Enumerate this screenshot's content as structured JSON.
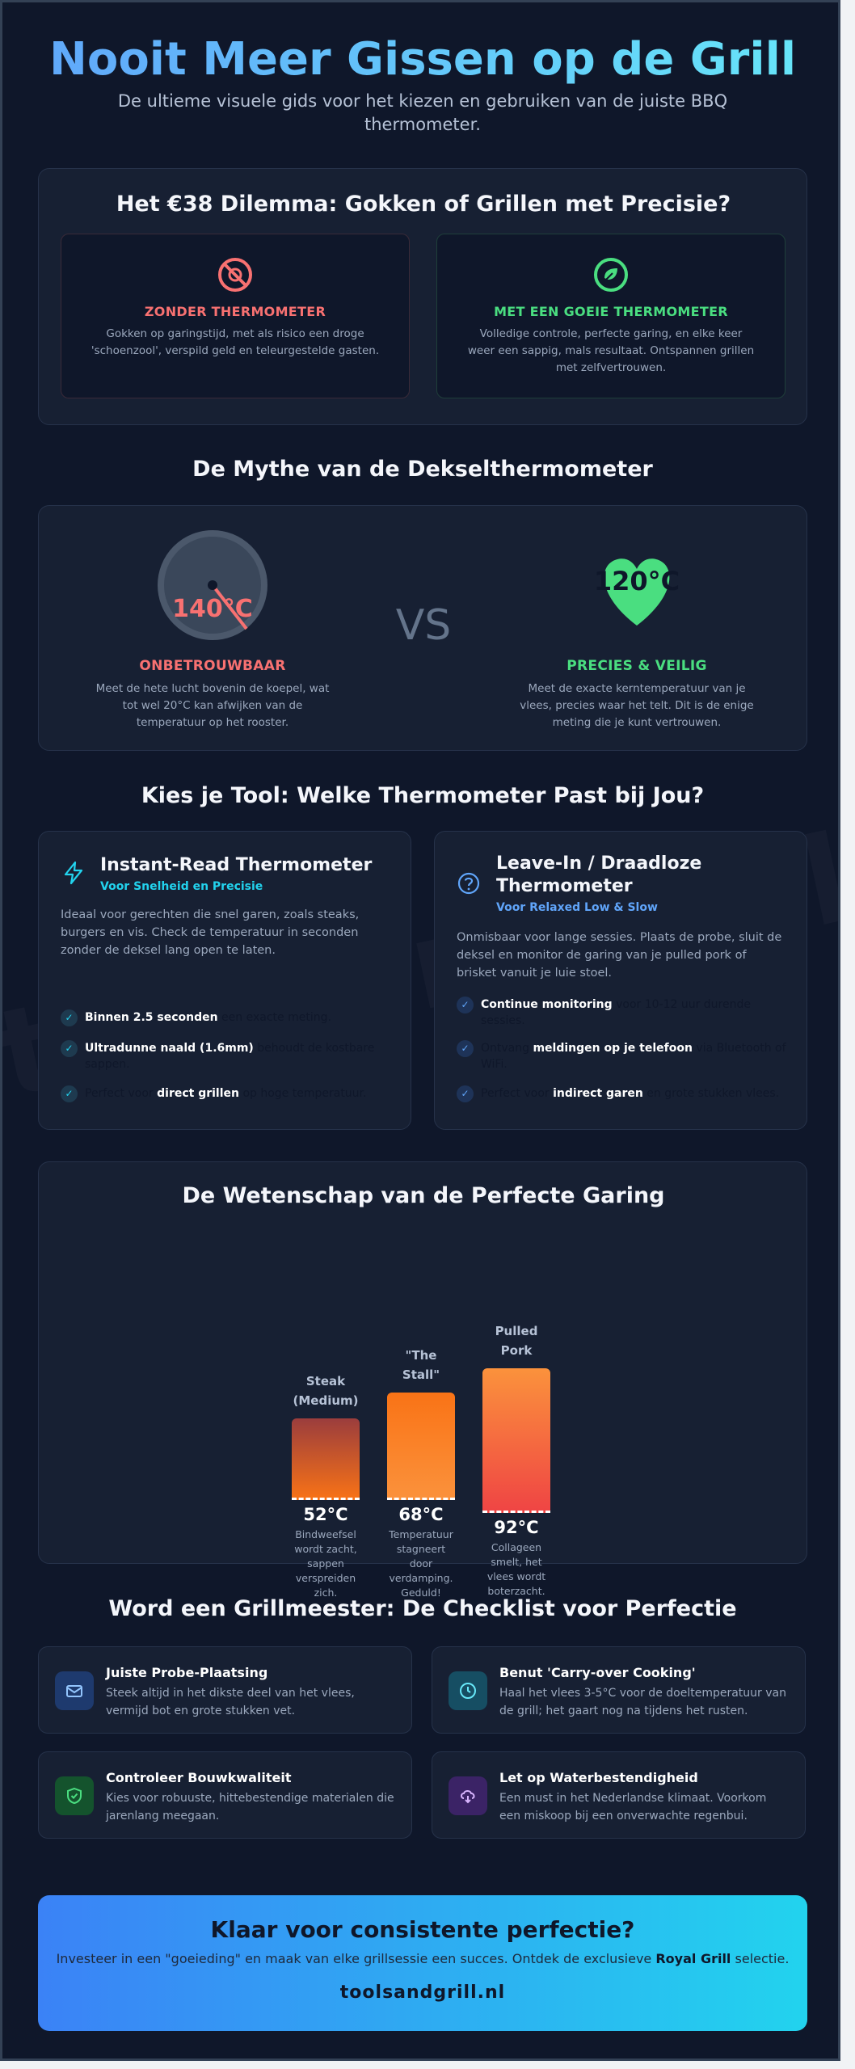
{
  "hero": {
    "title": "Nooit Meer Gissen op de Grill",
    "subtitle": "De ultieme visuele gids voor het kiezen en gebruiken van de juiste BBQ thermometer."
  },
  "watermark": "toolsandgrill.nl",
  "dilemma": {
    "title": "Het €38 Dilemma: Gokken of Grillen met Precisie?",
    "without": {
      "label": "ZONDER THERMOMETER",
      "text": "Gokken op garingstijd, met als risico een droge 'schoenzool', verspild geld en teleurgestelde gasten.",
      "icon": "ban-icon",
      "color": "#f87171"
    },
    "with": {
      "label": "MET EEN GOEIE THERMOMETER",
      "text": "Volledige controle, perfecte garing, en elke keer weer een sappig, mals resultaat. Ontspannen grillen met zelfvertrouwen.",
      "icon": "leaf-icon",
      "color": "#4ade80"
    }
  },
  "myth": {
    "title": "De Mythe van de Dekselthermometer",
    "left": {
      "reading": "140°C",
      "label": "ONBETROUWBAAR",
      "text": "Meet de hete lucht bovenin de koepel, wat tot wel 20°C kan afwijken van de temperatuur op het rooster."
    },
    "vs": "VS",
    "right": {
      "reading": "120°C",
      "label": "PRECIES & VEILIG",
      "text": "Meet de exacte kerntemperatuur van je vlees, precies waar het telt. Dit is de enige meting die je kunt vertrouwen."
    }
  },
  "tools": {
    "title": "Kies je Tool: Welke Thermometer Past bij Jou?",
    "instant": {
      "name": "Instant-Read Thermometer",
      "tag": "Voor Snelheid en Precisie",
      "desc": "Ideaal voor gerechten die snel garen, zoals steaks, burgers en vis. Check de temperatuur in seconden zonder de deksel lang open te laten.",
      "features": [
        {
          "strong": "Binnen 2.5 seconden",
          "rest": " een exacte meting."
        },
        {
          "strong": "Ultradunne naald (1.6mm)",
          "rest": " behoudt de kostbare sappen."
        },
        {
          "pre": "Perfect voor ",
          "strong": "direct grillen",
          "rest": " op hoge temperatuur."
        }
      ]
    },
    "leavein": {
      "name": "Leave-In / Draadloze Thermometer",
      "tag": "Voor Relaxed Low & Slow",
      "desc": "Onmisbaar voor lange sessies. Plaats de probe, sluit de deksel en monitor de garing van je pulled pork of brisket vanuit je luie stoel.",
      "features": [
        {
          "strong": "Continue monitoring",
          "rest": " voor 10-12 uur durende sessies."
        },
        {
          "pre": "Ontvang ",
          "strong": "meldingen op je telefoon",
          "rest": " via Bluetooth of WiFi."
        },
        {
          "pre": "Perfect voor ",
          "strong": "indirect garen",
          "rest": " en grote stukken vlees."
        }
      ]
    }
  },
  "science": {
    "title": "De Wetenschap van de Perfecte Garing",
    "bars": [
      {
        "label": "Steak (Medium)",
        "temp": "52°C",
        "value": 52,
        "note": "Bindweefsel wordt zacht, sappen verspreiden zich.",
        "color_top": "#9b3d3d",
        "color_bottom": "#f97316"
      },
      {
        "label": "\"The Stall\"",
        "temp": "68°C",
        "value": 68,
        "note": "Temperatuur stagneert door verdamping. Geduld!",
        "color_top": "#f97316",
        "color_bottom": "#fb923c"
      },
      {
        "label": "Pulled Pork",
        "temp": "92°C",
        "value": 92,
        "note": "Collageen smelt, het vlees wordt boterzacht.",
        "color_top": "#fb923c",
        "color_bottom": "#ef4444"
      }
    ]
  },
  "checklist": {
    "title": "Word een Grillmeester: De Checklist voor Perfectie",
    "items": [
      {
        "title": "Juiste Probe-Plaatsing",
        "text": "Steek altijd in het dikste deel van het vlees, vermijd bot en grote stukken vet.",
        "icon": "envelope-icon",
        "bg": "#1e3a6e",
        "fg": "#93c5fd"
      },
      {
        "title": "Benut 'Carry-over Cooking'",
        "text": "Haal het vlees 3-5°C voor de doeltemperatuur van de grill; het gaart nog na tijdens het rusten.",
        "icon": "clock-icon",
        "bg": "#164e63",
        "fg": "#67e8f9"
      },
      {
        "title": "Controleer Bouwkwaliteit",
        "text": "Kies voor robuuste, hittebestendige materialen die jarenlang meegaan.",
        "icon": "shield-check-icon",
        "bg": "#14532d",
        "fg": "#4ade80"
      },
      {
        "title": "Let op Waterbestendigheid",
        "text": "Een must in het Nederlandse klimaat. Voorkom een miskoop bij een onverwachte regenbui.",
        "icon": "cloud-rain-icon",
        "bg": "#3b2366",
        "fg": "#d8b4fe"
      }
    ]
  },
  "cta": {
    "title": "Klaar voor consistente perfectie?",
    "text_pre": "Investeer in een \"goeieding\" en maak van elke grillsessie een succes. Ontdek de exclusieve ",
    "text_strong": "Royal Grill",
    "text_post": " selectie.",
    "site": "toolsandgrill.nl"
  }
}
